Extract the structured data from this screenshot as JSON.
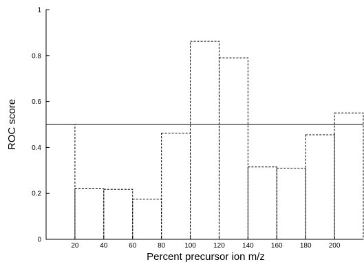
{
  "chart_data": {
    "type": "bar",
    "title": "",
    "xlabel": "Percent precursor ion m/z",
    "ylabel": "ROC score",
    "bin_edges": [
      0,
      20,
      40,
      60,
      80,
      100,
      120,
      140,
      160,
      180,
      200,
      220
    ],
    "values": [
      0.5,
      0.22,
      0.218,
      0.175,
      0.462,
      0.862,
      0.79,
      0.315,
      0.31,
      0.455,
      0.55
    ],
    "reference_line": 0.5,
    "xlim": [
      0,
      220
    ],
    "ylim": [
      0,
      1
    ],
    "x_ticks": [
      20,
      40,
      60,
      80,
      100,
      120,
      140,
      160,
      180,
      200
    ],
    "x_tick_labels": [
      "20",
      "40",
      "60",
      "80",
      "100",
      "120",
      "140",
      "160",
      "180",
      "200"
    ],
    "y_ticks": [
      0,
      0.2,
      0.4,
      0.6,
      0.8,
      1
    ],
    "y_tick_labels": [
      "0",
      "0.2",
      "0.4",
      "0.6",
      "0.8",
      "1"
    ],
    "bar_style": "dashed-outline",
    "grid": false,
    "legend": "none"
  }
}
